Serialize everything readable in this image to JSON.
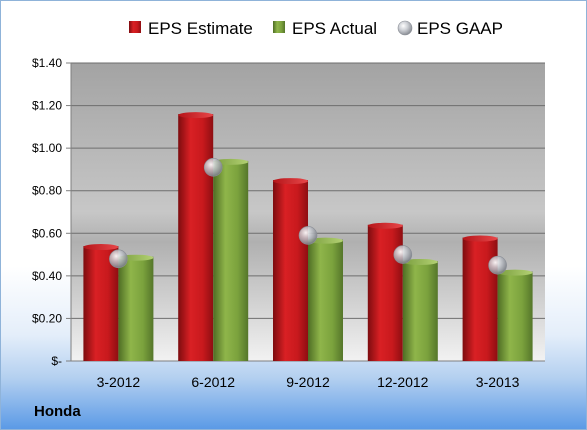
{
  "company": "Honda",
  "colors": {
    "estimate": "#c0161b",
    "actual": "#7aa03c",
    "gaap": "#b8bcc4"
  },
  "chart_data": {
    "type": "bar",
    "categories": [
      "3-2012",
      "6-2012",
      "9-2012",
      "12-2012",
      "3-2013"
    ],
    "series": [
      {
        "name": "EPS Estimate",
        "kind": "bar",
        "values": [
          0.54,
          1.16,
          0.85,
          0.64,
          0.58
        ]
      },
      {
        "name": "EPS Actual",
        "kind": "bar",
        "values": [
          0.49,
          0.94,
          0.57,
          0.47,
          0.42
        ]
      },
      {
        "name": "EPS GAAP",
        "kind": "marker",
        "values": [
          0.48,
          0.91,
          0.59,
          0.5,
          0.45
        ]
      }
    ],
    "yticks": [
      "$-",
      "$0.20",
      "$0.40",
      "$0.60",
      "$0.80",
      "$1.00",
      "$1.20",
      "$1.40"
    ],
    "ylim": [
      0,
      1.4
    ],
    "grid": true,
    "legend": "top"
  }
}
